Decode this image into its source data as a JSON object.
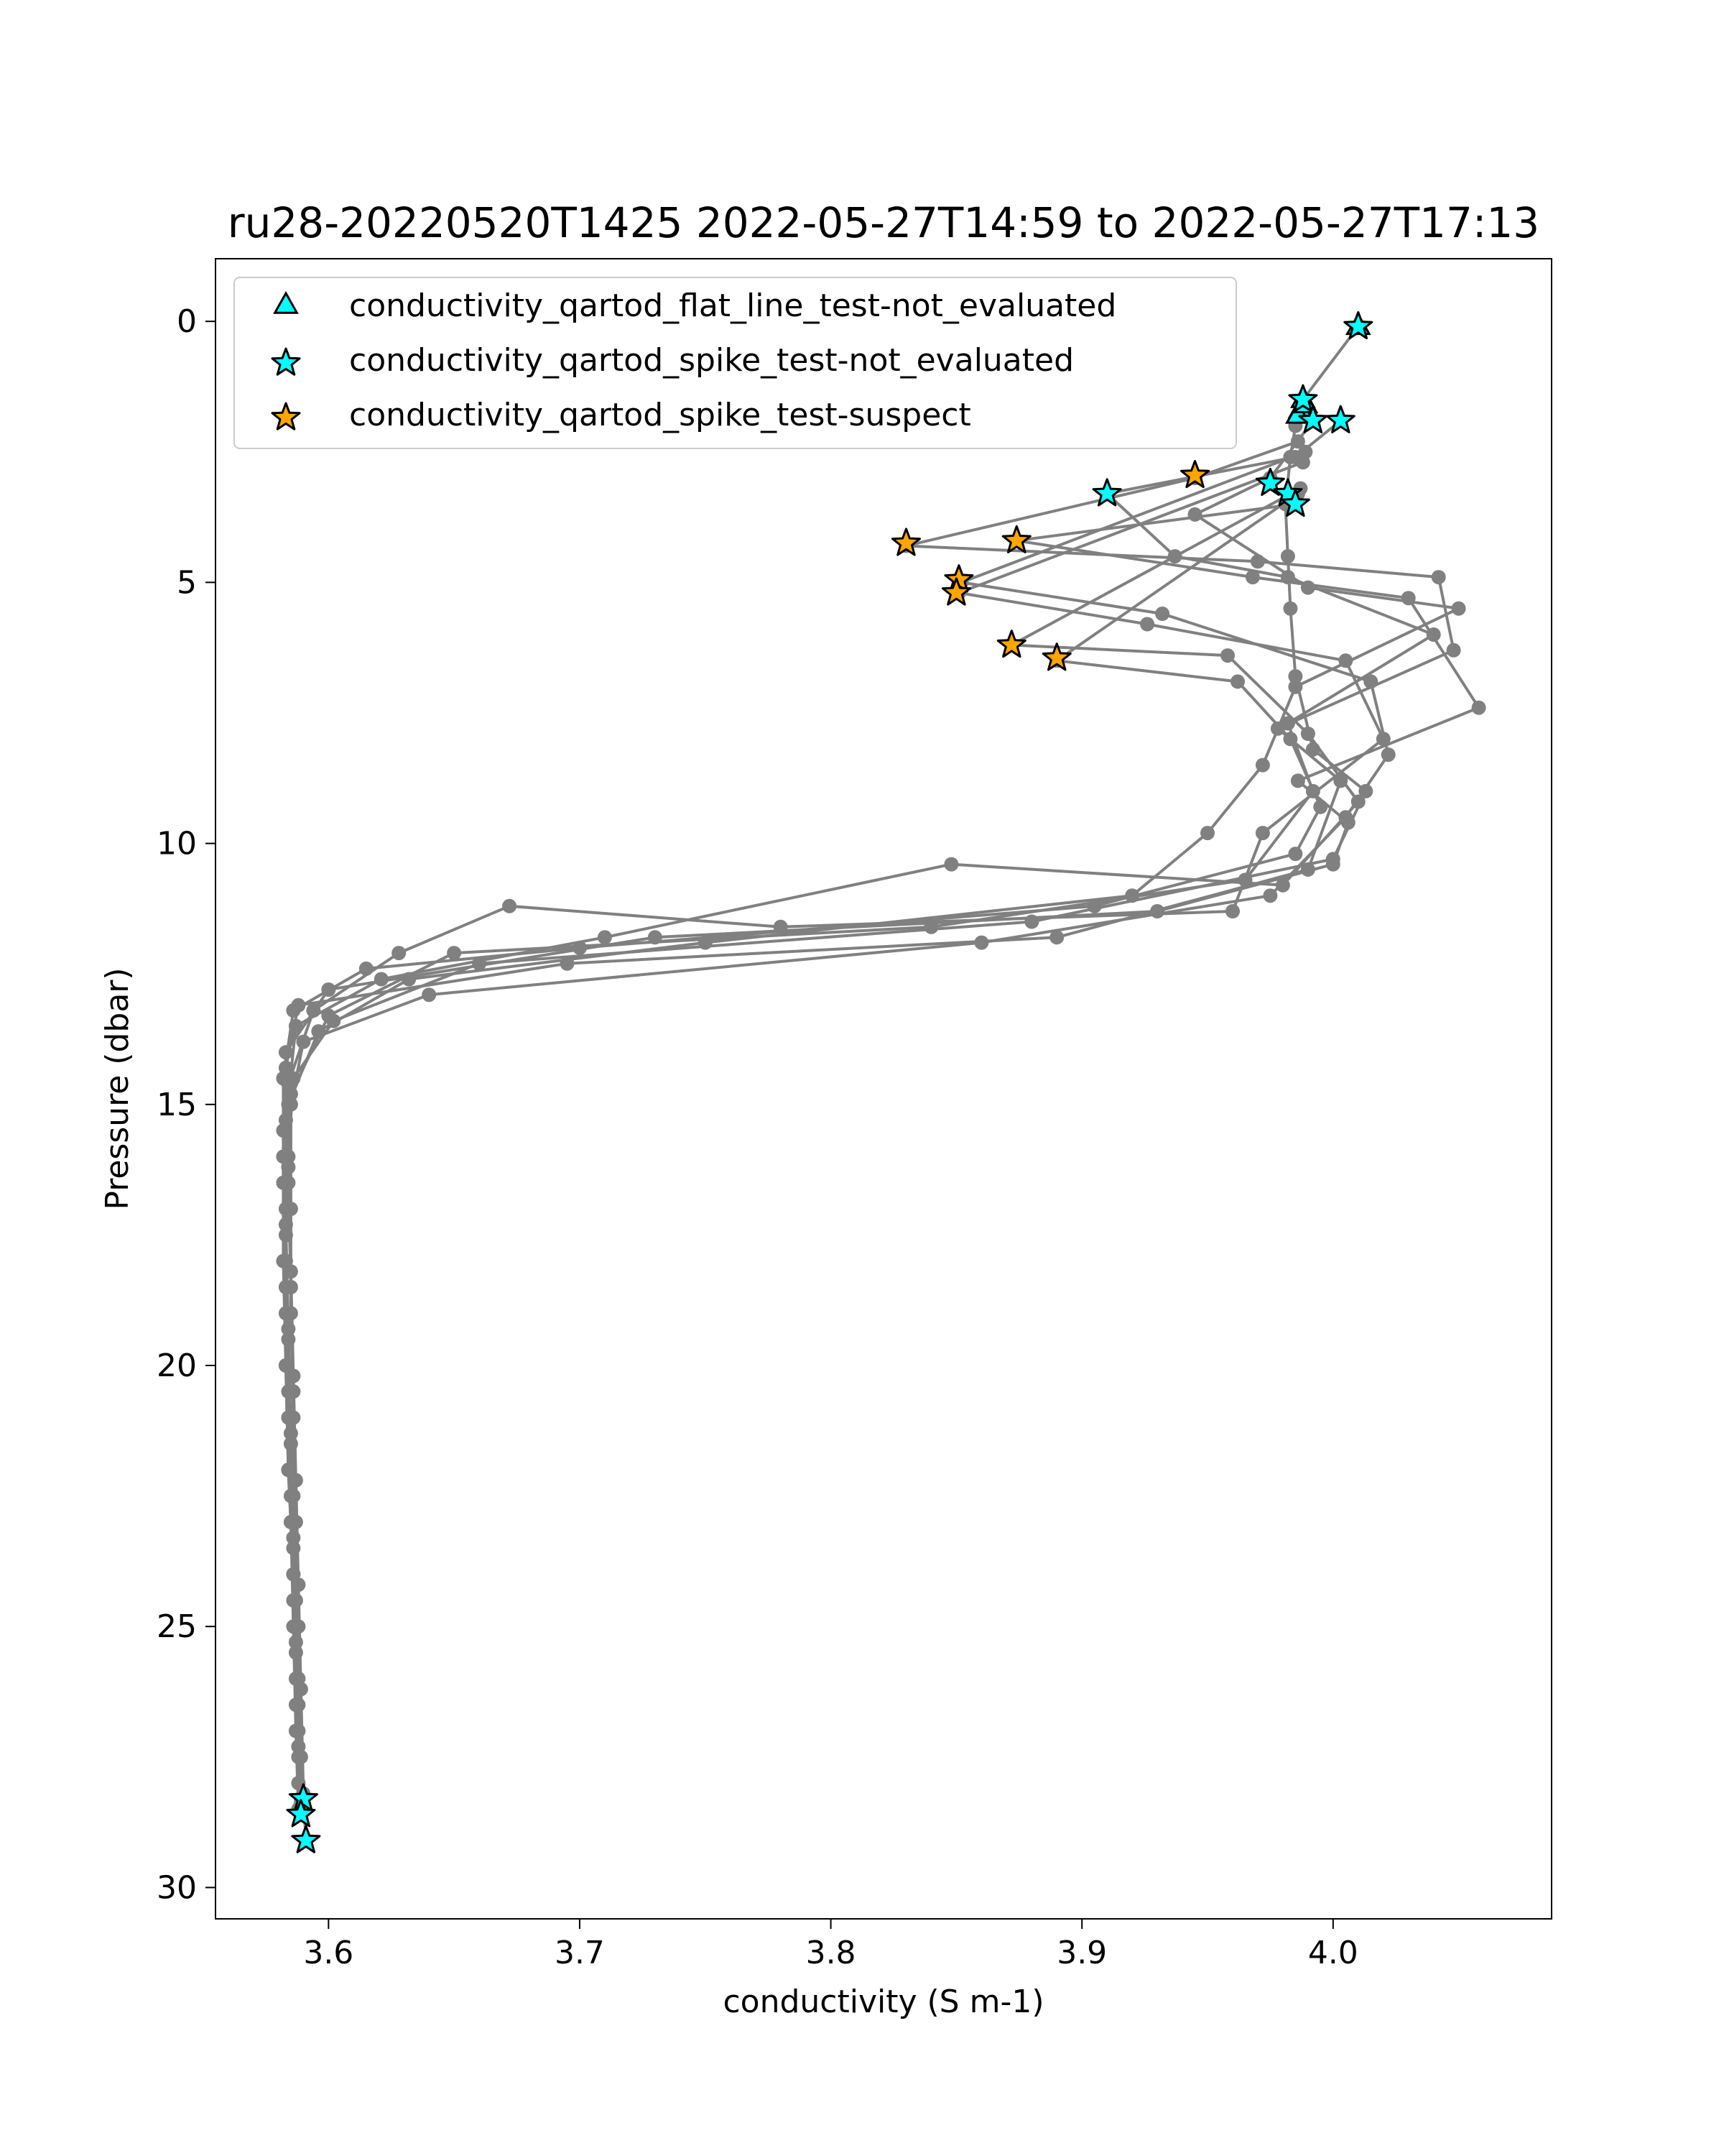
{
  "chart_data": {
    "type": "scatter",
    "title": "ru28-20220520T1425 2022-05-27T14:59 to 2022-05-27T17:13",
    "xlabel": "conductivity (S m-1)",
    "ylabel": "Pressure (dbar)",
    "xlim": [
      3.555,
      4.087
    ],
    "ylim": [
      30.6,
      -1.2
    ],
    "y_inverted": true,
    "grid": false,
    "legend_position": "upper-left",
    "x_ticks": [
      3.6,
      3.7,
      3.8,
      3.9,
      4.0
    ],
    "x_tick_labels": [
      "3.6",
      "3.7",
      "3.8",
      "3.9",
      "4.0"
    ],
    "y_ticks": [
      0,
      5,
      10,
      15,
      20,
      25,
      30
    ],
    "y_tick_labels": [
      "0",
      "5",
      "10",
      "15",
      "20",
      "25",
      "30"
    ],
    "colors": {
      "profile_line": "#808080",
      "profile_point": "#808080",
      "flat_line_not_evaluated": "#00ffff",
      "spike_not_evaluated": "#00ffff",
      "spike_suspect": "#ffa500",
      "marker_edge": "#000000",
      "legend_border": "#cccccc",
      "axes": "#000000"
    },
    "legend": [
      {
        "label": "conductivity_qartod_flat_line_test-not_evaluated",
        "marker": "triangle",
        "color": "#00ffff"
      },
      {
        "label": "conductivity_qartod_spike_test-not_evaluated",
        "marker": "star",
        "color": "#00ffff"
      },
      {
        "label": "conductivity_qartod_spike_test-suspect",
        "marker": "star",
        "color": "#ffa500"
      }
    ],
    "profiles": [
      {
        "points": [
          [
            4.01,
            0.1
          ],
          [
            3.988,
            1.5
          ],
          [
            3.985,
            2.0
          ],
          [
            3.983,
            2.6
          ],
          [
            3.981,
            3.5
          ],
          [
            3.982,
            4.5
          ],
          [
            3.983,
            5.5
          ],
          [
            3.985,
            6.8
          ],
          [
            3.992,
            8.2
          ],
          [
            4.013,
            9.0
          ],
          [
            4.0,
            10.3
          ],
          [
            3.88,
            11.5
          ],
          [
            3.66,
            12.3
          ],
          [
            3.602,
            13.4
          ],
          [
            3.586,
            14.5
          ],
          [
            3.584,
            16
          ],
          [
            3.583,
            18
          ],
          [
            3.583,
            20
          ],
          [
            3.584,
            22
          ],
          [
            3.586,
            24
          ],
          [
            3.587,
            26
          ],
          [
            3.588,
            27.5
          ],
          [
            3.589,
            28.3
          ]
        ]
      },
      {
        "points": [
          [
            3.992,
            1.9
          ],
          [
            3.975,
            3.0
          ],
          [
            3.945,
            3.7
          ],
          [
            3.99,
            5.1
          ],
          [
            4.05,
            5.5
          ],
          [
            3.985,
            7.0
          ],
          [
            3.972,
            8.5
          ],
          [
            3.95,
            9.8
          ],
          [
            3.92,
            11.0
          ],
          [
            3.75,
            11.9
          ],
          [
            3.632,
            12.6
          ],
          [
            3.596,
            13.6
          ],
          [
            3.584,
            15
          ],
          [
            3.583,
            17
          ],
          [
            3.583,
            19
          ],
          [
            3.584,
            21
          ],
          [
            3.585,
            23
          ],
          [
            3.586,
            25
          ],
          [
            3.587,
            27
          ],
          [
            3.588,
            28.5
          ]
        ]
      },
      {
        "points": [
          [
            4.003,
            1.9
          ],
          [
            3.985,
            2.6
          ],
          [
            3.91,
            3.3
          ],
          [
            3.937,
            4.5
          ],
          [
            3.982,
            4.9
          ],
          [
            4.04,
            6.0
          ],
          [
            3.982,
            7.7
          ],
          [
            3.992,
            9.0
          ],
          [
            3.965,
            10.7
          ],
          [
            3.84,
            11.6
          ],
          [
            3.65,
            12.1
          ],
          [
            3.6,
            13.3
          ],
          [
            3.585,
            14.8
          ],
          [
            3.584,
            16.5
          ],
          [
            3.585,
            18.5
          ],
          [
            3.586,
            20.5
          ],
          [
            3.586,
            22.5
          ],
          [
            3.587,
            24.5
          ],
          [
            3.588,
            26.5
          ],
          [
            3.589,
            28.6
          ]
        ]
      },
      {
        "points": [
          [
            3.986,
            2.3
          ],
          [
            3.945,
            3.0
          ],
          [
            3.83,
            4.3
          ],
          [
            3.97,
            4.6
          ],
          [
            4.042,
            4.9
          ],
          [
            4.048,
            6.3
          ],
          [
            3.978,
            7.8
          ],
          [
            4.003,
            8.8
          ],
          [
            3.99,
            10.5
          ],
          [
            3.89,
            11.8
          ],
          [
            3.695,
            12.3
          ],
          [
            3.588,
            13.1
          ],
          [
            3.583,
            14.3
          ],
          [
            3.582,
            16
          ],
          [
            3.582,
            18
          ],
          [
            3.583,
            20
          ],
          [
            3.584,
            22
          ],
          [
            3.586,
            24
          ],
          [
            3.588,
            26
          ],
          [
            3.59,
            28.3
          ]
        ]
      },
      {
        "points": [
          [
            3.985,
            3.5
          ],
          [
            3.874,
            4.2
          ],
          [
            3.968,
            4.9
          ],
          [
            4.03,
            5.3
          ],
          [
            4.058,
            7.4
          ],
          [
            3.986,
            8.8
          ],
          [
            4.006,
            9.6
          ],
          [
            4.0,
            10.4
          ],
          [
            3.93,
            11.3
          ],
          [
            3.73,
            11.8
          ],
          [
            3.6,
            12.8
          ],
          [
            3.583,
            14.0
          ],
          [
            3.582,
            15.5
          ],
          [
            3.583,
            17.5
          ],
          [
            3.584,
            19.5
          ],
          [
            3.585,
            21.5
          ],
          [
            3.586,
            23.5
          ],
          [
            3.587,
            25.5
          ],
          [
            3.589,
            27.5
          ],
          [
            3.591,
            29.1
          ]
        ]
      },
      {
        "points": [
          [
            3.989,
            2.5
          ],
          [
            3.852,
            5.0
          ],
          [
            3.932,
            5.6
          ],
          [
            4.015,
            6.9
          ],
          [
            4.022,
            8.3
          ],
          [
            4.005,
            9.5
          ],
          [
            3.975,
            11.0
          ],
          [
            3.86,
            11.9
          ],
          [
            3.64,
            12.9
          ],
          [
            3.59,
            13.8
          ],
          [
            3.585,
            15
          ],
          [
            3.585,
            17
          ],
          [
            3.585,
            19
          ],
          [
            3.586,
            21
          ],
          [
            3.587,
            23
          ],
          [
            3.588,
            25
          ],
          [
            3.588,
            27
          ],
          [
            3.589,
            28.4
          ]
        ]
      },
      {
        "points": [
          [
            3.988,
            2.7
          ],
          [
            3.851,
            5.2
          ],
          [
            3.926,
            5.8
          ],
          [
            4.005,
            6.5
          ],
          [
            4.02,
            8.0
          ],
          [
            3.972,
            9.8
          ],
          [
            3.96,
            11.3
          ],
          [
            3.78,
            11.6
          ],
          [
            3.672,
            11.2
          ],
          [
            3.628,
            12.1
          ],
          [
            3.594,
            13.2
          ],
          [
            3.584,
            14.6
          ],
          [
            3.584,
            16.2
          ],
          [
            3.585,
            18.2
          ],
          [
            3.586,
            20.2
          ],
          [
            3.587,
            22.2
          ],
          [
            3.588,
            24.2
          ],
          [
            3.589,
            26.2
          ],
          [
            3.59,
            28.2
          ]
        ]
      },
      {
        "points": [
          [
            3.987,
            3.2
          ],
          [
            3.872,
            6.2
          ],
          [
            3.958,
            6.4
          ],
          [
            3.99,
            7.9
          ],
          [
            4.01,
            9.2
          ],
          [
            3.98,
            10.8
          ],
          [
            3.848,
            10.4
          ],
          [
            3.71,
            11.8
          ],
          [
            3.621,
            12.6
          ],
          [
            3.587,
            13.5
          ],
          [
            3.583,
            15.3
          ],
          [
            3.583,
            17.3
          ],
          [
            3.584,
            19.3
          ],
          [
            3.585,
            21.3
          ],
          [
            3.586,
            23.3
          ],
          [
            3.587,
            25.3
          ],
          [
            3.588,
            27.3
          ],
          [
            3.589,
            28.6
          ]
        ]
      },
      {
        "points": [
          [
            3.986,
            3.3
          ],
          [
            3.89,
            6.5
          ],
          [
            3.962,
            6.9
          ],
          [
            3.983,
            8.0
          ],
          [
            3.995,
            9.3
          ],
          [
            3.985,
            10.2
          ],
          [
            3.905,
            11.2
          ],
          [
            3.7,
            12.0
          ],
          [
            3.615,
            12.4
          ],
          [
            3.586,
            13.2
          ],
          [
            3.582,
            14.5
          ],
          [
            3.582,
            16.5
          ],
          [
            3.583,
            18.5
          ],
          [
            3.584,
            20.5
          ],
          [
            3.585,
            22.5
          ],
          [
            3.586,
            24.5
          ],
          [
            3.587,
            26.5
          ],
          [
            3.588,
            28.0
          ]
        ]
      }
    ],
    "flat_line_not_evaluated_points": [
      [
        4.01,
        0.1
      ],
      [
        3.988,
        1.5
      ],
      [
        3.987,
        1.7
      ],
      [
        3.986,
        1.8
      ],
      [
        3.989,
        1.6
      ]
    ],
    "spike_not_evaluated_points": [
      [
        4.01,
        0.1
      ],
      [
        3.988,
        1.5
      ],
      [
        3.992,
        1.9
      ],
      [
        4.003,
        1.9
      ],
      [
        3.91,
        3.3
      ],
      [
        3.975,
        3.1
      ],
      [
        3.982,
        3.3
      ],
      [
        3.985,
        3.5
      ],
      [
        3.59,
        28.3
      ],
      [
        3.589,
        28.6
      ],
      [
        3.591,
        29.1
      ]
    ],
    "spike_suspect_points": [
      [
        3.945,
        2.95
      ],
      [
        3.83,
        4.25
      ],
      [
        3.874,
        4.2
      ],
      [
        3.851,
        4.95
      ],
      [
        3.85,
        5.2
      ],
      [
        3.872,
        6.2
      ],
      [
        3.89,
        6.45
      ]
    ]
  }
}
